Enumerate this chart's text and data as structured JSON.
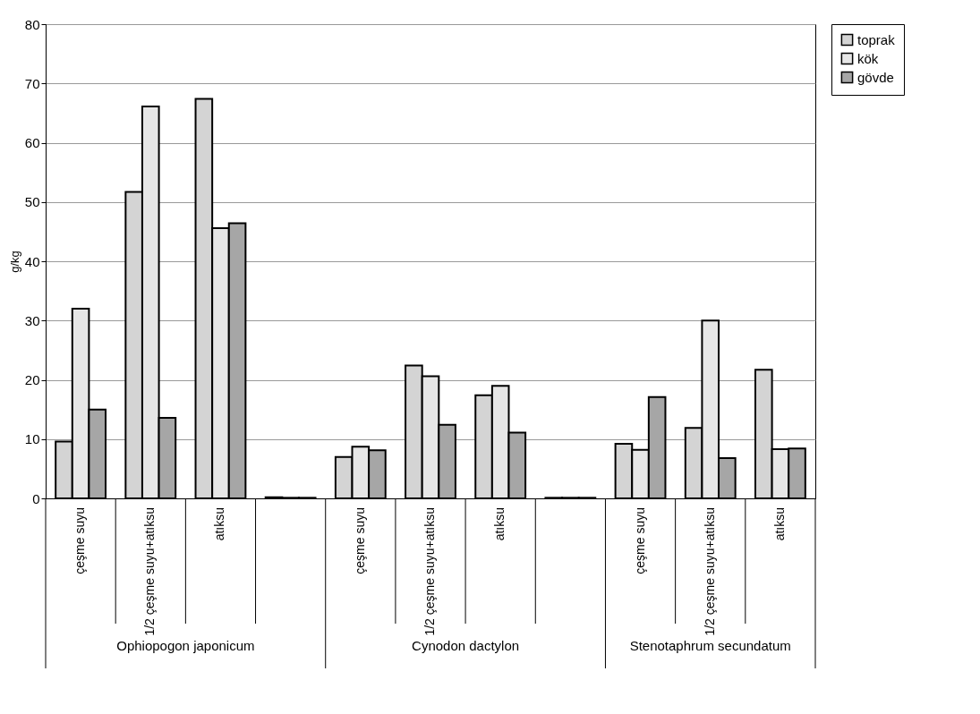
{
  "chart_data": {
    "type": "bar",
    "ylabel": "g/kg",
    "categories": [
      "çeşme suyu",
      "1/2 çeşme suyu+atıksu",
      "atıksu",
      null,
      "çeşme suyu",
      "1/2 çeşme suyu+atıksu",
      "atıksu",
      null,
      "çeşme suyu",
      "1/2 çeşme suyu+atıksu",
      "atıksu"
    ],
    "series": [
      {
        "name": "toprak",
        "color": "#d4d4d4",
        "values": [
          9.6,
          51.7,
          67.4,
          0.2,
          7.0,
          22.4,
          17.4,
          0.1,
          9.2,
          11.9,
          21.7
        ]
      },
      {
        "name": "kök",
        "color": "#e6e6e6",
        "values": [
          32.0,
          66.1,
          45.6,
          0.1,
          8.7,
          20.6,
          19.0,
          0.1,
          8.2,
          30.0,
          8.3
        ]
      },
      {
        "name": "gövde",
        "color": "#a6a6a6",
        "values": [
          15.0,
          13.6,
          46.4,
          0.1,
          8.1,
          12.4,
          11.1,
          0.1,
          17.1,
          6.8,
          8.4
        ]
      }
    ],
    "annotations": [
      "Ophiopogon japonicum",
      "Cynodon dactylon",
      "Stenotaphrum secundatum"
    ],
    "ylim": [
      0,
      80
    ],
    "yticks": [
      0,
      10,
      20,
      30,
      40,
      50,
      60,
      70,
      80
    ],
    "grid": "y",
    "legend": "right"
  }
}
